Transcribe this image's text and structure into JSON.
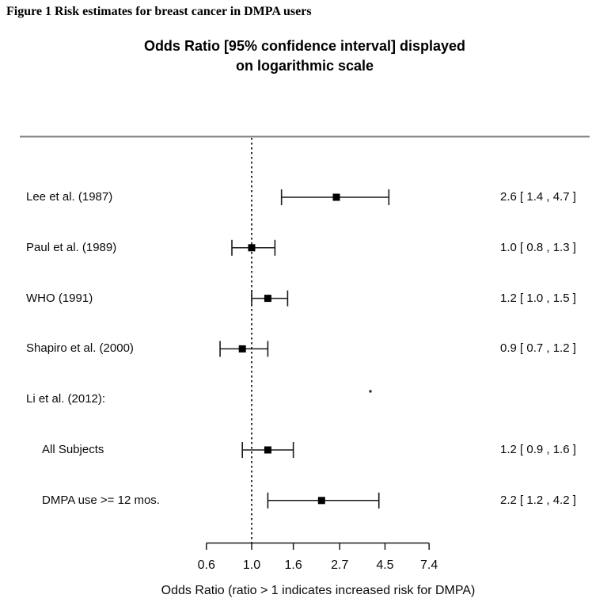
{
  "figure": {
    "caption": "Figure 1 Risk estimates for breast cancer in DMPA users"
  },
  "chart": {
    "title_line1": "Odds Ratio [95% confidence interval] displayed",
    "title_line2": "on logarithmic scale",
    "xlabel": "Odds Ratio (ratio > 1 indicates increased risk for DMPA)"
  },
  "chart_data": {
    "type": "scatter",
    "subtype": "forest-plot",
    "scale": "logarithmic",
    "reference_line": 1.0,
    "xlim": [
      0.6,
      7.4
    ],
    "x_ticks": [
      0.6,
      1.0,
      1.6,
      2.7,
      4.5,
      7.4
    ],
    "x_tick_labels": [
      "0.6",
      "1.0",
      "1.6",
      "2.7",
      "4.5",
      "7.4"
    ],
    "rows": [
      {
        "label": "Lee et al. (1987)",
        "indent": false,
        "header": false,
        "or": 2.6,
        "ci_low": 1.4,
        "ci_high": 4.7,
        "display": "2.6 [ 1.4 , 4.7 ]"
      },
      {
        "label": "Paul et al. (1989)",
        "indent": false,
        "header": false,
        "or": 1.0,
        "ci_low": 0.8,
        "ci_high": 1.3,
        "display": "1.0 [ 0.8 , 1.3 ]"
      },
      {
        "label": "WHO (1991)",
        "indent": false,
        "header": false,
        "or": 1.2,
        "ci_low": 1.0,
        "ci_high": 1.5,
        "display": "1.2 [ 1.0 , 1.5 ]"
      },
      {
        "label": "Shapiro et al. (2000)",
        "indent": false,
        "header": false,
        "or": 0.9,
        "ci_low": 0.7,
        "ci_high": 1.2,
        "display": "0.9 [ 0.7 , 1.2 ]"
      },
      {
        "label": "Li et al. (2012):",
        "indent": false,
        "header": true,
        "or": null,
        "ci_low": null,
        "ci_high": null,
        "display": ""
      },
      {
        "label": "All Subjects",
        "indent": true,
        "header": false,
        "or": 1.2,
        "ci_low": 0.9,
        "ci_high": 1.6,
        "display": "1.2 [ 0.9 , 1.6 ]"
      },
      {
        "label": "DMPA use >= 12 mos.",
        "indent": true,
        "header": false,
        "or": 2.2,
        "ci_low": 1.2,
        "ci_high": 4.2,
        "display": "2.2 [ 1.2 , 4.2 ]"
      }
    ],
    "colors": {
      "marker": "#000000",
      "line": "#1a1a1a",
      "separator": "#808080",
      "reference": "#000000"
    }
  }
}
